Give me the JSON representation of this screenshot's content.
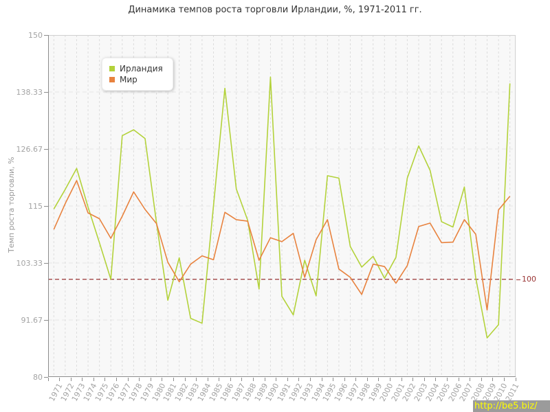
{
  "title": "Динамика темпов роста торговли Ирландии, %, 1971-2011 гг.",
  "y_axis": {
    "title": "Темп роста торговли, %",
    "tick_labels": [
      "150",
      "138.33",
      "126.67",
      "115",
      "103.33",
      "91.67",
      "80"
    ]
  },
  "x_axis": {
    "tick_labels": [
      "1971",
      "1972",
      "1973",
      "1974",
      "1975",
      "1976",
      "1977",
      "1978",
      "1979",
      "1980",
      "1981",
      "1982",
      "1983",
      "1984",
      "1985",
      "1986",
      "1987",
      "1988",
      "1989",
      "1990",
      "1991",
      "1992",
      "1993",
      "1994",
      "1995",
      "1996",
      "1997",
      "1998",
      "1999",
      "2000",
      "2001",
      "2002",
      "2003",
      "2004",
      "2005",
      "2006",
      "2007",
      "2008",
      "2009",
      "2010",
      "2011"
    ]
  },
  "legend": {
    "position": "top-left",
    "items": [
      {
        "key": "ireland",
        "label": "Ирландия",
        "color": "#b3d23a"
      },
      {
        "key": "world",
        "label": "Мир",
        "color": "#e8823e"
      }
    ]
  },
  "guide": {
    "label": "100",
    "value": 100,
    "color": "#993333"
  },
  "watermark": {
    "text": "http://be5.biz/",
    "background": "#9b9b9b",
    "color": "#ffff00"
  },
  "chart_data": {
    "type": "line",
    "title": "Динамика темпов роста торговли Ирландии, %, 1971-2011 гг.",
    "xlabel": "",
    "ylabel": "Темп роста торговли, %",
    "ylim": [
      80,
      150
    ],
    "yticks": [
      150,
      138.33,
      126.67,
      115,
      103.33,
      91.67,
      80
    ],
    "grid": true,
    "legend_position": "top-left",
    "guide_line": {
      "value": 100,
      "label": "100",
      "color": "#993333"
    },
    "x": [
      1971,
      1972,
      1973,
      1974,
      1975,
      1976,
      1977,
      1978,
      1979,
      1980,
      1981,
      1982,
      1983,
      1984,
      1985,
      1986,
      1987,
      1988,
      1989,
      1990,
      1991,
      1992,
      1993,
      1994,
      1995,
      1996,
      1997,
      1998,
      1999,
      2000,
      2001,
      2002,
      2003,
      2004,
      2005,
      2006,
      2007,
      2008,
      2009,
      2010,
      2011
    ],
    "series": [
      {
        "name": "Ирландия",
        "key": "ireland",
        "color": "#b3d23a",
        "values": [
          114.4,
          118.4,
          122.7,
          114.8,
          107.5,
          100.0,
          129.4,
          130.6,
          128.8,
          111.6,
          95.7,
          104.4,
          92.0,
          91.0,
          115.0,
          139.1,
          118.5,
          112.1,
          98.0,
          141.4,
          96.5,
          92.7,
          103.9,
          96.6,
          121.2,
          120.7,
          106.7,
          102.5,
          104.7,
          100.2,
          104.5,
          120.7,
          127.3,
          122.3,
          111.8,
          110.7,
          118.9,
          100.3,
          88.0,
          90.7,
          140.1
        ]
      },
      {
        "name": "Мир",
        "key": "world",
        "color": "#e8823e",
        "values": [
          110.2,
          115.5,
          120.2,
          113.6,
          112.4,
          108.4,
          112.9,
          117.9,
          114.3,
          111.4,
          103.5,
          99.5,
          103.1,
          104.8,
          104.0,
          113.7,
          112.2,
          111.9,
          103.9,
          108.5,
          107.7,
          109.4,
          100.4,
          108.1,
          112.2,
          102.1,
          100.4,
          96.9,
          103.1,
          102.6,
          99.2,
          102.8,
          110.8,
          111.5,
          107.5,
          107.6,
          112.2,
          109.2,
          93.7,
          114.2,
          117.0
        ]
      }
    ]
  }
}
